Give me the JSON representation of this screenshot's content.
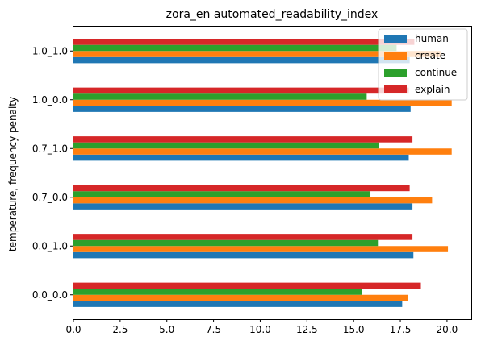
{
  "chart_data": {
    "type": "bar",
    "orientation": "horizontal",
    "title": "zora_en automated_readability_index",
    "ylabel": "temperature, frequency penalty",
    "xlabel": "",
    "categories": [
      "0.0_0.0",
      "0.0_1.0",
      "0.7_0.0",
      "0.7_1.0",
      "1.0_0.0",
      "1.0_1.0"
    ],
    "xlim": [
      0,
      21.3
    ],
    "xticks": [
      "0.0",
      "2.5",
      "5.0",
      "7.5",
      "10.0",
      "12.5",
      "15.0",
      "17.5",
      "20.0"
    ],
    "grid": false,
    "legend_position": "top-right",
    "series": [
      {
        "name": "human",
        "color": "#1f77b4",
        "values": [
          17.6,
          18.2,
          18.15,
          17.95,
          18.05,
          18.0
        ]
      },
      {
        "name": "create",
        "color": "#ff7f0e",
        "values": [
          17.9,
          20.05,
          19.2,
          20.25,
          20.25,
          19.65
        ]
      },
      {
        "name": "continue",
        "color": "#2ca02c",
        "values": [
          15.45,
          16.3,
          15.9,
          16.35,
          15.7,
          17.3
        ]
      },
      {
        "name": "explain",
        "color": "#d62728",
        "values": [
          18.6,
          18.15,
          18.0,
          18.15,
          17.95,
          18.25
        ]
      }
    ]
  }
}
